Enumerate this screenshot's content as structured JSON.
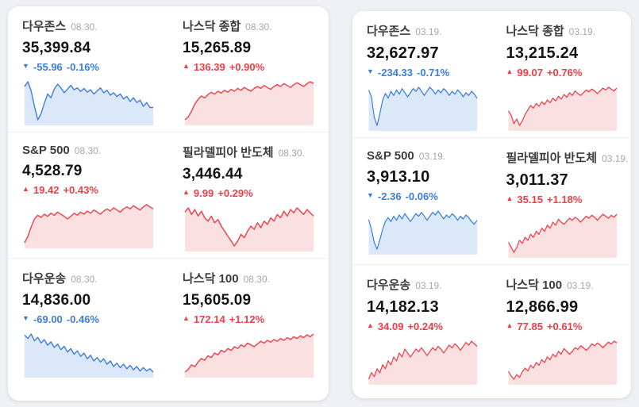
{
  "colors": {
    "up": "#ef3e47",
    "down": "#3a7de0",
    "up_fill": "#fbe0e2",
    "down_fill": "#dbe8fa"
  },
  "panels": [
    {
      "name": "left-panel",
      "tiles": [
        {
          "name": "다우존스",
          "date": "08.30.",
          "value": "35,399.84",
          "change": "-55.96",
          "percent": "-0.16%",
          "direction": "down",
          "arrow": "▼",
          "spark": [
            62,
            70,
            55,
            30,
            8,
            18,
            35,
            50,
            44,
            58,
            66,
            60,
            52,
            58,
            64,
            57,
            60,
            54,
            59,
            53,
            57,
            50,
            55,
            60,
            52,
            56,
            48,
            52,
            46,
            50,
            42,
            46,
            38,
            44,
            36,
            40,
            30,
            36,
            28,
            28
          ]
        },
        {
          "name": "나스닥 종합",
          "date": "08.30.",
          "value": "15,265.89",
          "change": "136.39",
          "percent": "+0.90%",
          "direction": "up",
          "arrow": "▲",
          "spark": [
            12,
            18,
            30,
            45,
            55,
            62,
            58,
            65,
            70,
            66,
            72,
            68,
            74,
            70,
            76,
            72,
            78,
            74,
            80,
            76,
            72,
            78,
            82,
            78,
            84,
            80,
            76,
            82,
            86,
            82,
            88,
            84,
            80,
            86,
            90,
            86,
            82,
            88,
            92,
            88
          ]
        },
        {
          "name": "S&P 500",
          "date": "08.30.",
          "value": "4,528.79",
          "change": "19.42",
          "percent": "+0.43%",
          "direction": "up",
          "arrow": "▲",
          "spark": [
            10,
            22,
            40,
            55,
            62,
            58,
            64,
            60,
            66,
            62,
            68,
            64,
            60,
            55,
            60,
            66,
            62,
            68,
            64,
            70,
            66,
            72,
            68,
            64,
            70,
            74,
            70,
            76,
            72,
            68,
            74,
            78,
            74,
            80,
            76,
            72,
            78,
            82,
            78,
            74
          ]
        },
        {
          "name": "필라델피아 반도체",
          "date": "08.30.",
          "value": "3,446.44",
          "change": "9.99",
          "percent": "+0.29%",
          "direction": "up",
          "arrow": "▲",
          "spark": [
            55,
            60,
            52,
            58,
            50,
            56,
            48,
            44,
            50,
            42,
            46,
            38,
            32,
            26,
            20,
            14,
            20,
            28,
            24,
            32,
            38,
            34,
            42,
            36,
            44,
            40,
            48,
            44,
            52,
            48,
            56,
            50,
            58,
            54,
            60,
            56,
            52,
            58,
            54,
            50
          ]
        },
        {
          "name": "다우운송",
          "date": "08.30.",
          "value": "14,836.00",
          "change": "-69.00",
          "percent": "-0.46%",
          "direction": "down",
          "arrow": "▼",
          "spark": [
            70,
            64,
            72,
            60,
            66,
            56,
            62,
            52,
            58,
            48,
            54,
            44,
            50,
            40,
            46,
            36,
            42,
            32,
            38,
            28,
            34,
            24,
            30,
            22,
            28,
            18,
            24,
            14,
            20,
            12,
            18,
            10,
            16,
            8,
            14,
            6,
            12,
            6,
            10,
            4
          ]
        },
        {
          "name": "나스닥 100",
          "date": "08.30.",
          "value": "15,605.09",
          "change": "172.14",
          "percent": "+1.12%",
          "direction": "up",
          "arrow": "▲",
          "spark": [
            8,
            14,
            24,
            20,
            30,
            38,
            34,
            44,
            40,
            50,
            46,
            56,
            52,
            60,
            56,
            64,
            60,
            68,
            64,
            72,
            68,
            64,
            70,
            76,
            72,
            78,
            74,
            80,
            76,
            82,
            78,
            84,
            80,
            86,
            82,
            88,
            84,
            90,
            86,
            92
          ]
        }
      ]
    },
    {
      "name": "right-panel",
      "tiles": [
        {
          "name": "다우존스",
          "date": "03.19.",
          "value": "32,627.97",
          "change": "-234.33",
          "percent": "-0.71%",
          "direction": "down",
          "arrow": "▼",
          "spark": [
            60,
            50,
            20,
            8,
            25,
            45,
            55,
            48,
            58,
            52,
            60,
            54,
            62,
            56,
            50,
            56,
            62,
            58,
            64,
            58,
            52,
            58,
            64,
            60,
            54,
            60,
            56,
            62,
            58,
            52,
            58,
            54,
            60,
            56,
            50,
            56,
            52,
            58,
            54,
            48
          ]
        },
        {
          "name": "나스닥 종합",
          "date": "03.19.",
          "value": "13,215.24",
          "change": "99.07",
          "percent": "+0.76%",
          "direction": "up",
          "arrow": "▲",
          "spark": [
            40,
            30,
            12,
            22,
            8,
            18,
            32,
            42,
            52,
            46,
            56,
            50,
            60,
            54,
            64,
            58,
            68,
            62,
            72,
            66,
            76,
            70,
            80,
            74,
            84,
            78,
            74,
            80,
            86,
            82,
            88,
            84,
            78,
            84,
            90,
            86,
            92,
            88,
            84,
            90
          ]
        },
        {
          "name": "S&P 500",
          "date": "03.19.",
          "value": "3,913.10",
          "change": "-2.36",
          "percent": "-0.06%",
          "direction": "down",
          "arrow": "▼",
          "spark": [
            55,
            40,
            20,
            10,
            24,
            40,
            52,
            58,
            52,
            60,
            54,
            62,
            56,
            64,
            58,
            52,
            58,
            64,
            60,
            66,
            60,
            54,
            60,
            66,
            62,
            68,
            62,
            56,
            62,
            58,
            64,
            60,
            54,
            60,
            56,
            62,
            58,
            52,
            48,
            54
          ]
        },
        {
          "name": "필라델피아 반도체",
          "date": "03.19.",
          "value": "3,011.37",
          "change": "35.15",
          "percent": "+1.18%",
          "direction": "up",
          "arrow": "▲",
          "spark": [
            30,
            20,
            10,
            20,
            34,
            28,
            40,
            34,
            46,
            40,
            52,
            46,
            58,
            52,
            64,
            58,
            70,
            64,
            76,
            70,
            66,
            72,
            78,
            74,
            80,
            76,
            70,
            76,
            82,
            78,
            84,
            80,
            74,
            80,
            86,
            82,
            78,
            84,
            80,
            86
          ]
        },
        {
          "name": "다우운송",
          "date": "03.19.",
          "value": "14,182.13",
          "change": "34.09",
          "percent": "+0.24%",
          "direction": "up",
          "arrow": "▲",
          "spark": [
            20,
            30,
            24,
            36,
            30,
            42,
            36,
            48,
            42,
            54,
            48,
            60,
            54,
            66,
            60,
            54,
            60,
            66,
            62,
            68,
            62,
            56,
            62,
            68,
            64,
            70,
            66,
            60,
            66,
            72,
            68,
            74,
            70,
            64,
            70,
            76,
            72,
            78,
            74,
            70
          ]
        },
        {
          "name": "나스닥 100",
          "date": "03.19.",
          "value": "12,866.99",
          "change": "77.85",
          "percent": "+0.61%",
          "direction": "up",
          "arrow": "▲",
          "spark": [
            25,
            15,
            8,
            18,
            12,
            24,
            32,
            26,
            38,
            32,
            44,
            38,
            50,
            44,
            56,
            50,
            62,
            56,
            68,
            62,
            74,
            68,
            62,
            68,
            76,
            72,
            80,
            76,
            70,
            76,
            84,
            80,
            86,
            82,
            76,
            82,
            88,
            84,
            90,
            86
          ]
        }
      ]
    }
  ]
}
